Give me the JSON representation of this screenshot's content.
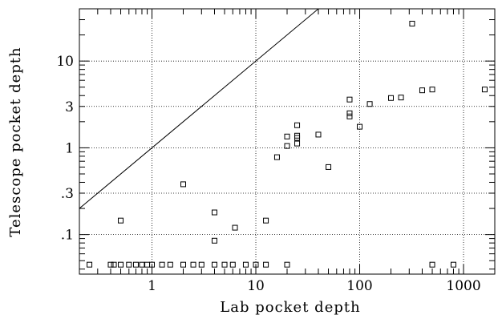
{
  "chart_data": {
    "type": "scatter",
    "xlabel": "Lab pocket depth",
    "ylabel": "Telescope pocket depth",
    "x_scale": "log",
    "y_scale": "log",
    "xlim": [
      0.2,
      2000
    ],
    "ylim": [
      0.035,
      40
    ],
    "x_ticks": [
      {
        "value": 1,
        "label": "1"
      },
      {
        "value": 10,
        "label": "10"
      },
      {
        "value": 100,
        "label": "100"
      },
      {
        "value": 1000,
        "label": "1000"
      }
    ],
    "y_ticks": [
      {
        "value": 0.1,
        "label": ".1"
      },
      {
        "value": 0.3,
        "label": ".3"
      },
      {
        "value": 1,
        "label": "1"
      },
      {
        "value": 3,
        "label": "3"
      },
      {
        "value": 10,
        "label": "10"
      }
    ],
    "grid": true,
    "reference_line": {
      "type": "y=x",
      "slope_log": 1,
      "intercept": 0
    },
    "points": [
      {
        "x": 0.25,
        "y": 0.045
      },
      {
        "x": 0.4,
        "y": 0.045
      },
      {
        "x": 0.43,
        "y": 0.045
      },
      {
        "x": 0.5,
        "y": 0.045
      },
      {
        "x": 0.6,
        "y": 0.045
      },
      {
        "x": 0.7,
        "y": 0.045
      },
      {
        "x": 0.8,
        "y": 0.045
      },
      {
        "x": 0.9,
        "y": 0.045
      },
      {
        "x": 1.0,
        "y": 0.045
      },
      {
        "x": 1.25,
        "y": 0.045
      },
      {
        "x": 1.5,
        "y": 0.045
      },
      {
        "x": 2.0,
        "y": 0.045
      },
      {
        "x": 2.5,
        "y": 0.045
      },
      {
        "x": 3.0,
        "y": 0.045
      },
      {
        "x": 4.0,
        "y": 0.045
      },
      {
        "x": 5.0,
        "y": 0.045
      },
      {
        "x": 6.0,
        "y": 0.045
      },
      {
        "x": 8.0,
        "y": 0.045
      },
      {
        "x": 10,
        "y": 0.045
      },
      {
        "x": 12.5,
        "y": 0.045
      },
      {
        "x": 20,
        "y": 0.045
      },
      {
        "x": 500,
        "y": 0.045
      },
      {
        "x": 800,
        "y": 0.045
      },
      {
        "x": 0.5,
        "y": 0.145
      },
      {
        "x": 2.0,
        "y": 0.38
      },
      {
        "x": 4.0,
        "y": 0.18
      },
      {
        "x": 4.0,
        "y": 0.085
      },
      {
        "x": 6.3,
        "y": 0.12
      },
      {
        "x": 12.5,
        "y": 0.145
      },
      {
        "x": 16,
        "y": 0.78
      },
      {
        "x": 20,
        "y": 1.05
      },
      {
        "x": 20,
        "y": 1.35
      },
      {
        "x": 25,
        "y": 1.12
      },
      {
        "x": 25,
        "y": 1.3
      },
      {
        "x": 25,
        "y": 1.38
      },
      {
        "x": 25,
        "y": 1.82
      },
      {
        "x": 40,
        "y": 1.42
      },
      {
        "x": 50,
        "y": 0.6
      },
      {
        "x": 80,
        "y": 2.3
      },
      {
        "x": 80,
        "y": 2.5
      },
      {
        "x": 80,
        "y": 3.6
      },
      {
        "x": 100,
        "y": 1.75
      },
      {
        "x": 125,
        "y": 3.2
      },
      {
        "x": 200,
        "y": 3.75
      },
      {
        "x": 250,
        "y": 3.8
      },
      {
        "x": 320,
        "y": 27
      },
      {
        "x": 400,
        "y": 4.6
      },
      {
        "x": 500,
        "y": 4.7
      },
      {
        "x": 1600,
        "y": 4.7
      }
    ]
  }
}
